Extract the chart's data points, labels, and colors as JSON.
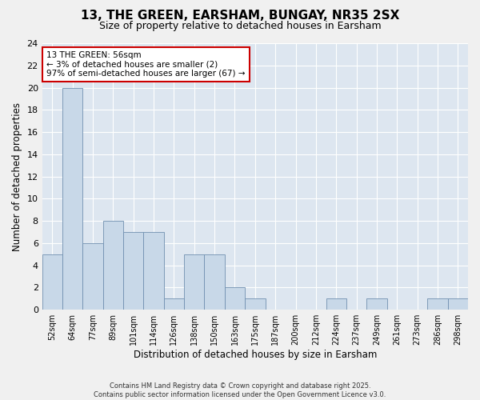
{
  "title_line1": "13, THE GREEN, EARSHAM, BUNGAY, NR35 2SX",
  "title_line2": "Size of property relative to detached houses in Earsham",
  "xlabel": "Distribution of detached houses by size in Earsham",
  "ylabel": "Number of detached properties",
  "bins": [
    "52sqm",
    "64sqm",
    "77sqm",
    "89sqm",
    "101sqm",
    "114sqm",
    "126sqm",
    "138sqm",
    "150sqm",
    "163sqm",
    "175sqm",
    "187sqm",
    "200sqm",
    "212sqm",
    "224sqm",
    "237sqm",
    "249sqm",
    "261sqm",
    "273sqm",
    "286sqm",
    "298sqm"
  ],
  "values": [
    5,
    20,
    6,
    8,
    7,
    7,
    1,
    5,
    5,
    2,
    1,
    0,
    0,
    0,
    1,
    0,
    1,
    0,
    0,
    1,
    1
  ],
  "bar_color": "#c8d8e8",
  "bar_edge_color": "#7090b0",
  "annotation_box_text": "13 THE GREEN: 56sqm\n← 3% of detached houses are smaller (2)\n97% of semi-detached houses are larger (67) →",
  "annotation_box_color": "#ffffff",
  "annotation_box_edge_color": "#cc0000",
  "ylim": [
    0,
    24
  ],
  "yticks": [
    0,
    2,
    4,
    6,
    8,
    10,
    12,
    14,
    16,
    18,
    20,
    22,
    24
  ],
  "background_color": "#dde6f0",
  "fig_background_color": "#f0f0f0",
  "footer_line1": "Contains HM Land Registry data © Crown copyright and database right 2025.",
  "footer_line2": "Contains public sector information licensed under the Open Government Licence v3.0."
}
